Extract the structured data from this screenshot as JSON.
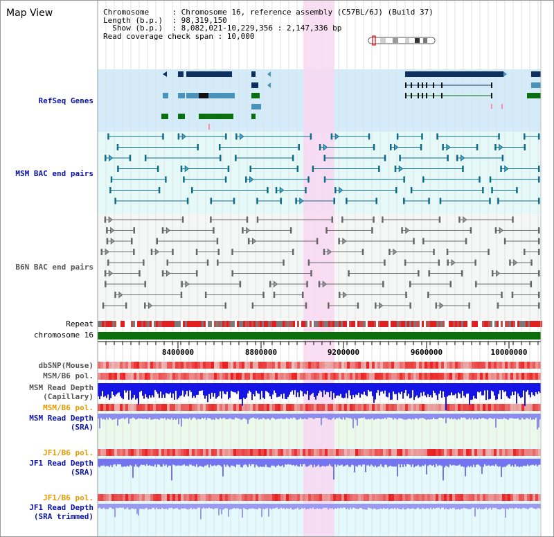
{
  "header": {
    "title": "Map View",
    "info_lines": [
      "Chromosome     : Chromosome 16, reference assembly (C57BL/6J) (Build 37)",
      "Length (b.p.)  : 98,319,150",
      "  Show (b.p.)  : 8,082,021-10,229,356 : 2,147,336 bp",
      "Read coverage check span : 10,000"
    ]
  },
  "tracks": {
    "refseq_genes": "RefSeq Genes",
    "msm_bac": "MSM BAC end pairs",
    "b6n_bac": "B6N BAC end pairs",
    "repeat": "Repeat",
    "chromosome": "chromosome 16",
    "dbsnp": "dbSNP(Mouse)",
    "msm_b6_pol_1": "MSM/B6 pol.",
    "msm_read_depth_cap_1": "MSM Read Depth",
    "msm_read_depth_cap_2": "(Capillary)",
    "msm_b6_pol_2": "MSM/B6 pol.",
    "msm_read_depth_sra_1": "MSM Read Depth",
    "msm_read_depth_sra_2": "(SRA)",
    "jf1_b6_pol_1": "JF1/B6 pol.",
    "jf1_read_depth_sra_1": "JF1 Read Depth",
    "jf1_read_depth_sra_2": "(SRA)",
    "jf1_b6_pol_2": "JF1/B6 pol.",
    "jf1_read_depth_trim_1": "JF1 Read Depth",
    "jf1_read_depth_trim_2": "(SRA trimmed)"
  },
  "axis": {
    "ticks": [
      "8400000",
      "8800000",
      "9200000",
      "9600000",
      "10000000"
    ]
  },
  "colors": {
    "highlight": "#f8d8f2",
    "refseq_bg": "#d4ecfa",
    "msm_bac_bg": "#e6f9f9",
    "b6n_bac_bg": "#f5f7f7",
    "gene_dark": "#0d3060",
    "gene_mid": "#4a92b8",
    "gene_green": "#0b6e10",
    "chromosome_bar": "#0a6e0a",
    "depth_blue": "#1414e6",
    "depth_lilac": "#8c8cf0"
  }
}
